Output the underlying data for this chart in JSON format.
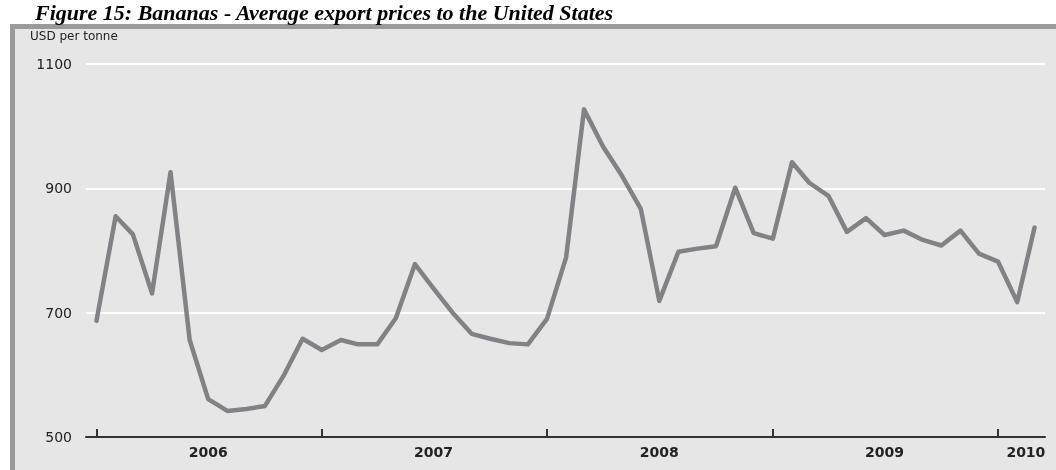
{
  "chart_data": {
    "type": "line",
    "title": "Figure 15: Bananas - Average export prices to the United States",
    "ylabel": "USD per tonne",
    "x": [
      "2006-01",
      "2006-02",
      "2006-03",
      "2006-04",
      "2006-05",
      "2006-06",
      "2006-07",
      "2006-08",
      "2006-09",
      "2006-10",
      "2006-11",
      "2006-12",
      "2007-01",
      "2007-02",
      "2007-03",
      "2007-04",
      "2007-05",
      "2007-06",
      "2007-07",
      "2007-08",
      "2007-09",
      "2007-10",
      "2007-11",
      "2007-12",
      "2008-01",
      "2008-02",
      "2008-03",
      "2008-04",
      "2008-05",
      "2008-06",
      "2008-07",
      "2008-08",
      "2008-09",
      "2008-10",
      "2008-11",
      "2008-12",
      "2009-01",
      "2009-02",
      "2009-03",
      "2009-04",
      "2009-05",
      "2009-06",
      "2009-07",
      "2009-08",
      "2009-09",
      "2009-10",
      "2009-11",
      "2009-12",
      "2010-01",
      "2010-02",
      "2010-03"
    ],
    "series": [
      {
        "color": "#808285",
        "values": [
          687,
          855,
          826,
          731,
          926,
          656,
          561,
          542,
          545,
          550,
          600,
          658,
          640,
          656,
          649,
          649,
          691,
          778,
          739,
          700,
          666,
          658,
          651,
          649,
          690,
          789,
          1027,
          967,
          921,
          867,
          719,
          798,
          803,
          807,
          901,
          828,
          819,
          942,
          909,
          888,
          830,
          852,
          825,
          832,
          817,
          808,
          832,
          795,
          782,
          717,
          837
        ]
      }
    ],
    "xlim": [
      "2005-12-15",
      "2010-03-18"
    ],
    "xticks": [
      {
        "value": "2006-01",
        "label": null
      },
      {
        "value": "2006-07",
        "label": "2006"
      },
      {
        "value": "2007-01",
        "label": null
      },
      {
        "value": "2007-07",
        "label": "2007"
      },
      {
        "value": "2008-01",
        "label": null
      },
      {
        "value": "2008-07",
        "label": "2008"
      },
      {
        "value": "2009-01",
        "label": null
      },
      {
        "value": "2009-07",
        "label": "2009"
      },
      {
        "value": "2010-01",
        "label": null
      },
      {
        "value": "2010-02-15",
        "label": "2010"
      }
    ],
    "ylim": [
      500,
      1100
    ],
    "yticks": [
      500,
      700,
      900,
      1100
    ],
    "grid": "y",
    "line_style": "solid",
    "marker": "none"
  }
}
